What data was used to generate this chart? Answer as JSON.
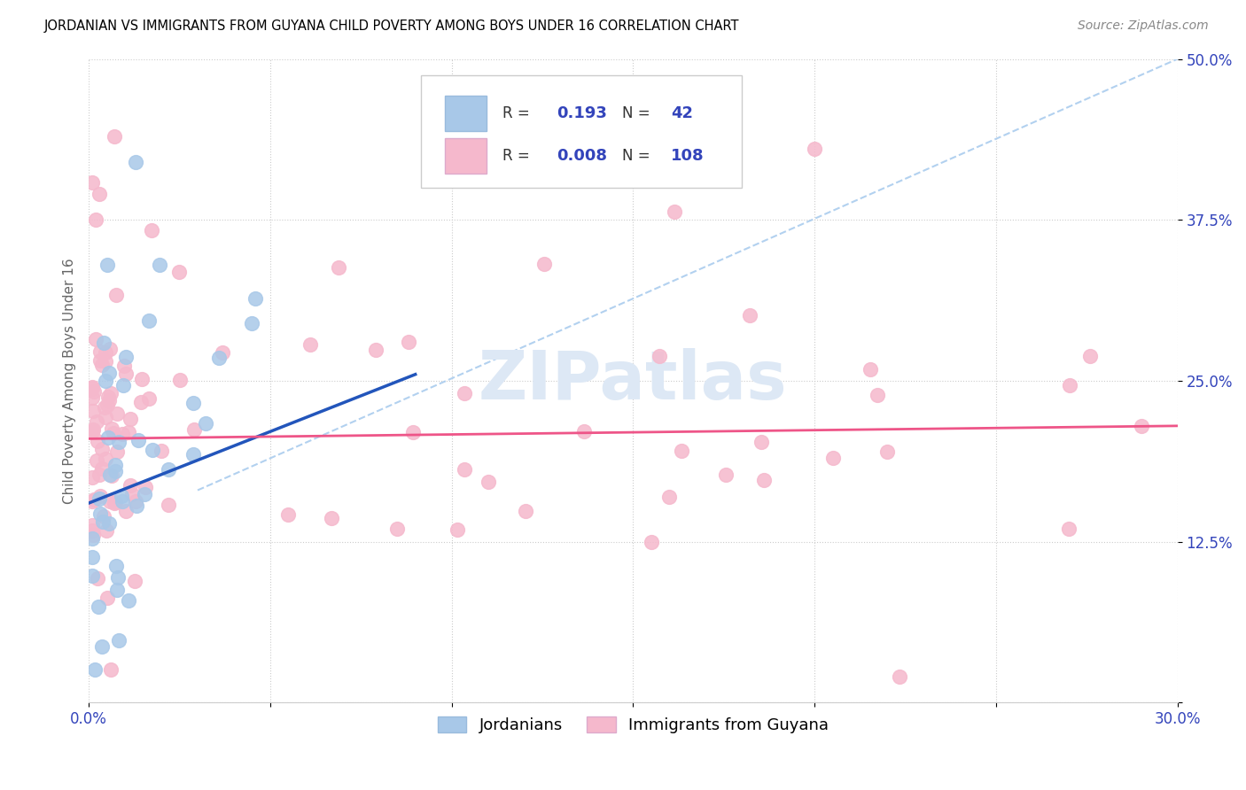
{
  "title": "JORDANIAN VS IMMIGRANTS FROM GUYANA CHILD POVERTY AMONG BOYS UNDER 16 CORRELATION CHART",
  "source": "Source: ZipAtlas.com",
  "ylabel": "Child Poverty Among Boys Under 16",
  "xlim": [
    0.0,
    0.3
  ],
  "ylim": [
    0.0,
    0.5
  ],
  "xticks": [
    0.0,
    0.05,
    0.1,
    0.15,
    0.2,
    0.25,
    0.3
  ],
  "xtick_labels": [
    "0.0%",
    "",
    "",
    "",
    "",
    "",
    "30.0%"
  ],
  "yticks": [
    0.0,
    0.125,
    0.25,
    0.375,
    0.5
  ],
  "ytick_labels": [
    "",
    "12.5%",
    "25.0%",
    "37.5%",
    "50.0%"
  ],
  "blue_R": "0.193",
  "blue_N": "42",
  "pink_R": "0.008",
  "pink_N": "108",
  "blue_color": "#a8c8e8",
  "pink_color": "#f5b8cc",
  "blue_line_color": "#2255bb",
  "pink_line_color": "#ee5588",
  "diag_line_color": "#aaccee",
  "label_color": "#3344bb",
  "watermark_color": "#dde8f5",
  "blue_line_x": [
    0.0,
    0.09
  ],
  "blue_line_y": [
    0.155,
    0.255
  ],
  "pink_line_x": [
    0.0,
    0.3
  ],
  "pink_line_y": [
    0.205,
    0.215
  ],
  "diag_line_x": [
    0.03,
    0.3
  ],
  "diag_line_y": [
    0.165,
    0.5
  ]
}
